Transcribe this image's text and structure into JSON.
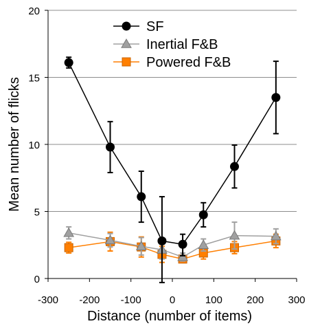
{
  "chart_data": {
    "type": "line",
    "title": "",
    "xlabel": "Distance (number of items)",
    "ylabel": "Mean number of flicks",
    "xlim": [
      -300,
      300
    ],
    "ylim": [
      0,
      20
    ],
    "xticks": [
      -300,
      -200,
      -100,
      0,
      100,
      200,
      300
    ],
    "yticks": [
      0,
      5,
      10,
      15,
      20
    ],
    "xtick_labels": [
      "-300",
      "-200",
      "-100",
      "0",
      "100",
      "200",
      "300"
    ],
    "ytick_labels": [
      "0",
      "5",
      "10",
      "15",
      "20"
    ],
    "grid": {
      "horizontal": true,
      "vertical": false
    },
    "legend_position": "top-center",
    "series": [
      {
        "name": "SF",
        "color": "#000000",
        "marker": "circle",
        "x": [
          -250,
          -150,
          -75,
          -25,
          25,
          75,
          150,
          250
        ],
        "y": [
          16.1,
          9.8,
          6.1,
          2.8,
          2.55,
          4.75,
          8.35,
          13.5
        ],
        "err_low": [
          0.4,
          1.9,
          1.9,
          3.1,
          0.85,
          0.9,
          1.6,
          2.7
        ],
        "err_high": [
          0.4,
          1.9,
          1.9,
          3.3,
          0.75,
          0.9,
          1.6,
          2.7
        ]
      },
      {
        "name": "Inertial F&B",
        "color": "#a0a0a0",
        "marker": "triangle",
        "x": [
          -250,
          -150,
          -75,
          -25,
          25,
          75,
          150,
          250
        ],
        "y": [
          3.4,
          2.85,
          2.4,
          2.15,
          1.6,
          2.5,
          3.2,
          3.15
        ],
        "err_low": [
          0.45,
          0.5,
          0.65,
          0.7,
          0.3,
          0.45,
          1.0,
          0.55
        ],
        "err_high": [
          0.45,
          0.5,
          0.65,
          0.7,
          0.3,
          0.45,
          1.0,
          0.55
        ]
      },
      {
        "name": "Powered F&B",
        "color": "#ff7f00",
        "marker": "square",
        "x": [
          -250,
          -150,
          -75,
          -25,
          25,
          75,
          150,
          250
        ],
        "y": [
          2.3,
          2.75,
          2.35,
          1.8,
          1.45,
          1.9,
          2.3,
          2.8
        ],
        "err_low": [
          0.4,
          0.7,
          0.75,
          0.6,
          0.25,
          0.45,
          0.45,
          0.5
        ],
        "err_high": [
          0.4,
          0.7,
          0.75,
          0.6,
          0.25,
          0.45,
          0.45,
          0.5
        ]
      }
    ]
  }
}
